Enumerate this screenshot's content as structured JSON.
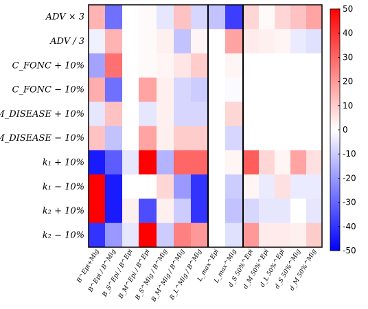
{
  "chart_data": {
    "type": "heatmap",
    "rows": [
      "ADV × 3",
      "ADV / 3",
      "C_FONC + 10%",
      "C_FONC − 10%",
      "M_DISEASE + 10%",
      "M_DISEASE − 10%",
      "k₁ + 10%",
      "k₁ − 10%",
      "k₂ + 10%",
      "k₂ − 10%"
    ],
    "columns": [
      "B^Epi+Mig",
      "B^Epi / B^Mig",
      "B_S^Epi / B^Epi",
      "B_M^Epi / B^Epi",
      "B_S^Mig / B^Mig",
      "B_M^Mig / B^Mig",
      "B_L^Mig / B^Mig",
      "L_max^Epi",
      "L_max^Mig",
      "d_S 50%^Epi",
      "d_M 50%^Epi",
      "d_L 50%^Epi",
      "d_S 50%^Mig",
      "d_M 50%^Mig",
      "d_L 50%^Mig"
    ],
    "values": [
      [
        15,
        -28,
        0,
        1,
        -5,
        12,
        -8,
        -12,
        -38,
        8,
        1,
        8,
        12,
        18,
        30
      ],
      [
        -3,
        15,
        0,
        1,
        3,
        -12,
        2,
        0,
        18,
        4,
        3,
        2,
        -4,
        -6,
        -20
      ],
      [
        -18,
        28,
        0,
        1,
        2,
        5,
        10,
        0,
        2,
        0,
        0,
        0,
        0,
        0,
        0
      ],
      [
        16,
        -28,
        0,
        18,
        3,
        -8,
        -10,
        0,
        -1,
        0,
        0,
        0,
        0,
        0,
        0
      ],
      [
        -5,
        12,
        0,
        -5,
        3,
        -8,
        -8,
        0,
        8,
        0,
        0,
        0,
        0,
        0,
        0
      ],
      [
        12,
        -12,
        0,
        18,
        3,
        10,
        10,
        0,
        -8,
        0,
        0,
        0,
        0,
        0,
        -1
      ],
      [
        -45,
        -32,
        -5,
        50,
        -15,
        30,
        30,
        0,
        2,
        32,
        8,
        2,
        18,
        6,
        0
      ],
      [
        50,
        -45,
        0,
        0,
        8,
        -20,
        -40,
        0,
        -10,
        2,
        -4,
        6,
        -4,
        -4,
        -2
      ],
      [
        50,
        -45,
        3,
        -35,
        3,
        -10,
        -40,
        0,
        -12,
        -8,
        -5,
        -5,
        0,
        -5,
        -2
      ],
      [
        -40,
        -20,
        -5,
        50,
        -10,
        25,
        20,
        0,
        -6,
        20,
        4,
        4,
        3,
        10,
        6
      ]
    ],
    "colorbar": {
      "min": -50,
      "max": 50,
      "ticks": [
        50,
        40,
        30,
        20,
        10,
        0,
        -10,
        -20,
        -30,
        -40,
        -50
      ]
    },
    "colormap": [
      "#0000ff",
      "#ffffff",
      "#ff0000"
    ]
  }
}
